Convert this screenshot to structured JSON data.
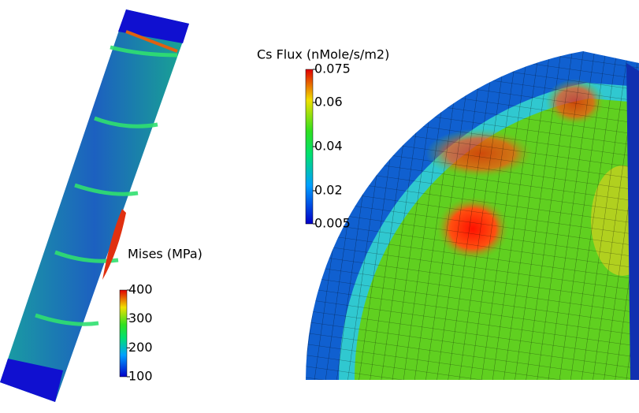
{
  "colorbars": [
    {
      "title": "Mises (MPa)",
      "range": [
        100,
        400
      ],
      "ticks": [
        100,
        200,
        300,
        400
      ]
    },
    {
      "title": "Cs Flux (nMole/s/m2)",
      "range": [
        0.005,
        0.075
      ],
      "ticks": [
        0.005,
        0.02,
        0.04,
        0.06,
        0.075
      ]
    }
  ]
}
